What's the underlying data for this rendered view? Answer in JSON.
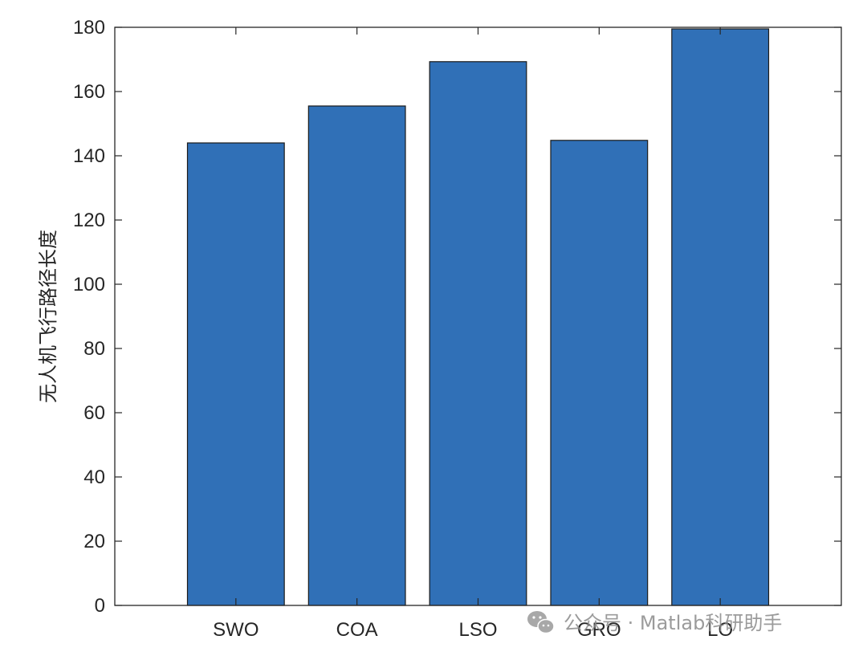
{
  "chart_data": {
    "type": "bar",
    "categories": [
      "SWO",
      "COA",
      "LSO",
      "GRO",
      "LO"
    ],
    "values": [
      144,
      155.5,
      169.3,
      144.8,
      179.5
    ],
    "title": "",
    "xlabel": "",
    "ylabel": "无人机飞行路径长度",
    "ylim": [
      0,
      180
    ],
    "yticks": [
      0,
      20,
      40,
      60,
      80,
      100,
      120,
      140,
      160,
      180
    ],
    "xlim": [
      0,
      6
    ],
    "grid": false,
    "bar_color": "#3070b7",
    "bar_edge_color": "#1a1a1a"
  },
  "watermark": {
    "icon": "wechat-icon",
    "text": "公众号 · Matlab科研助手"
  }
}
